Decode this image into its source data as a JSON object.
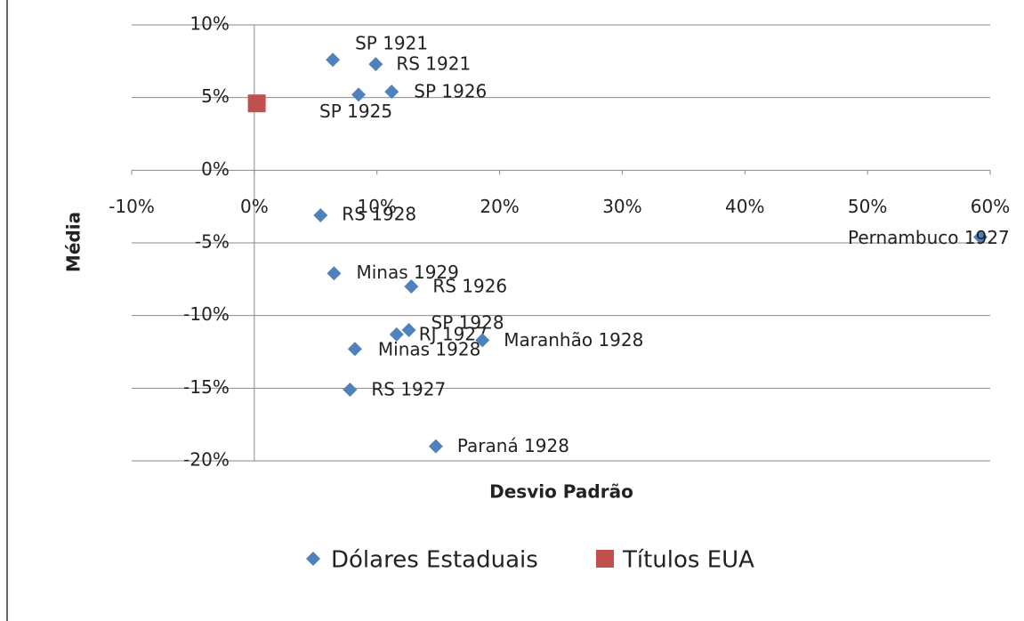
{
  "chart_data": {
    "type": "scatter",
    "xlabel": "Desvio Padrão",
    "ylabel": "Média",
    "xlim": [
      -10,
      60
    ],
    "ylim": [
      -20,
      10
    ],
    "xticks": [
      {
        "value": -10,
        "label": "-10%"
      },
      {
        "value": 0,
        "label": "0%"
      },
      {
        "value": 10,
        "label": "10%"
      },
      {
        "value": 20,
        "label": "20%"
      },
      {
        "value": 30,
        "label": "30%"
      },
      {
        "value": 40,
        "label": "40%"
      },
      {
        "value": 50,
        "label": "50%"
      },
      {
        "value": 60,
        "label": "60%"
      }
    ],
    "yticks": [
      {
        "value": -20,
        "label": "-20%"
      },
      {
        "value": -15,
        "label": "-15%"
      },
      {
        "value": -10,
        "label": "-10%"
      },
      {
        "value": -5,
        "label": "-5%"
      },
      {
        "value": 0,
        "label": "0%"
      },
      {
        "value": 5,
        "label": "5%"
      },
      {
        "value": 10,
        "label": "10%"
      }
    ],
    "grid": true,
    "legend": "bottom",
    "series": [
      {
        "name": "Dólares Estaduais",
        "color": "#4f81bd",
        "marker": "diamond",
        "x": [
          6.4,
          9.9,
          8.5,
          11.2,
          5.4,
          59.2,
          6.5,
          12.8,
          12.6,
          11.6,
          18.6,
          8.2,
          7.8,
          14.8
        ],
        "values": [
          7.6,
          7.3,
          5.2,
          5.4,
          -3.1,
          -4.6,
          -7.1,
          -8.0,
          -11.0,
          -11.3,
          -11.7,
          -12.3,
          -15.1,
          -19.0
        ],
        "labels": [
          "SP 1921",
          "RS 1921",
          "SP 1925",
          "SP 1926",
          "RS 1928",
          "Pernambuco 1927",
          "Minas 1929",
          "RS 1926",
          "SP 1928",
          "RJ 1927",
          "Maranhão 1928",
          "Minas 1928",
          "RS 1927",
          "Paraná 1928"
        ]
      },
      {
        "name": "Títulos EUA",
        "color": "#c0504d",
        "marker": "square",
        "x": [
          0.2
        ],
        "values": [
          4.6
        ]
      }
    ]
  }
}
